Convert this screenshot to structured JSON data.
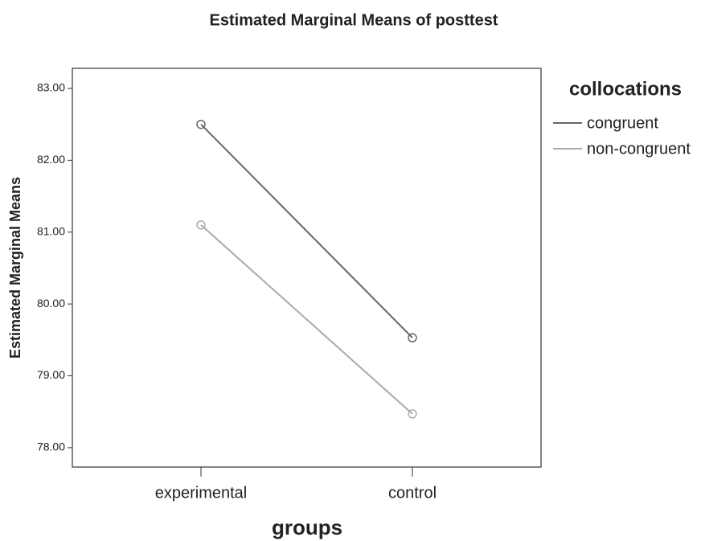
{
  "chart_data": {
    "type": "line",
    "title": "Estimated Marginal Means of posttest",
    "x_label": "groups",
    "y_label": "Estimated Marginal Means",
    "legend_title": "collocations",
    "categories": [
      "experimental",
      "control"
    ],
    "series": [
      {
        "name": "congruent",
        "color": "#666666",
        "values": [
          82.5,
          79.53
        ]
      },
      {
        "name": "non-congruent",
        "color": "#aaaaaa",
        "values": [
          81.1,
          78.47
        ]
      }
    ],
    "ylim": [
      77.73,
      83.28
    ],
    "yticks": [
      {
        "value": 78,
        "label": "78.00"
      },
      {
        "value": 79,
        "label": "79.00"
      },
      {
        "value": 80,
        "label": "80.00"
      },
      {
        "value": 81,
        "label": "81.00"
      },
      {
        "value": 82,
        "label": "82.00"
      },
      {
        "value": 83,
        "label": "83.00"
      }
    ],
    "grid": false
  }
}
